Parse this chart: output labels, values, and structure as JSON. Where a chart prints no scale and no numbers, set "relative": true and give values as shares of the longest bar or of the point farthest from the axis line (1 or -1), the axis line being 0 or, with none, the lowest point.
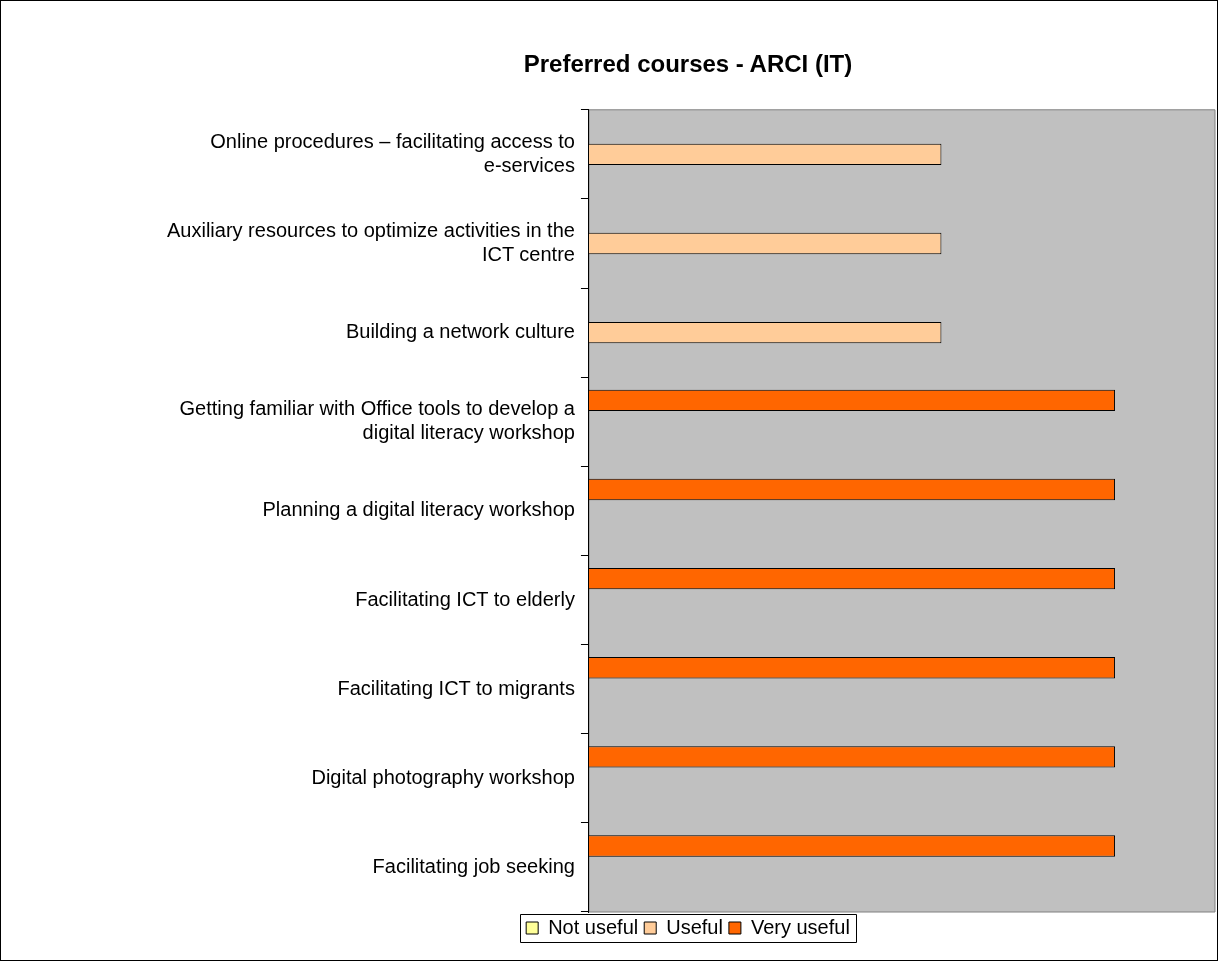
{
  "chart_data": {
    "type": "bar",
    "orientation": "horizontal",
    "relative": true,
    "title": "Preferred courses - ARCI (IT)",
    "categories": [
      "Online procedures – facilitating access to e-services",
      "Auxiliary resources to optimize activities in the ICT centre",
      "Building a network culture",
      "Getting familiar with Office tools to develop a digital literacy workshop",
      "Planning a digital literacy workshop",
      "Facilitating ICT to elderly",
      "Facilitating ICT to migrants",
      "Digital photography workshop",
      "Facilitating job seeking"
    ],
    "series": [
      {
        "name": "Not useful",
        "color": "#ffff99",
        "values": [
          null,
          null,
          null,
          null,
          null,
          null,
          null,
          null,
          null
        ]
      },
      {
        "name": "Useful",
        "color": "#ffcc99",
        "values": [
          0.67,
          0.67,
          0.67,
          null,
          null,
          null,
          null,
          null,
          null
        ]
      },
      {
        "name": "Very useful",
        "color": "#ff6600",
        "values": [
          null,
          null,
          null,
          1,
          1,
          1,
          1,
          1,
          1
        ]
      }
    ],
    "legend": "bottom"
  }
}
